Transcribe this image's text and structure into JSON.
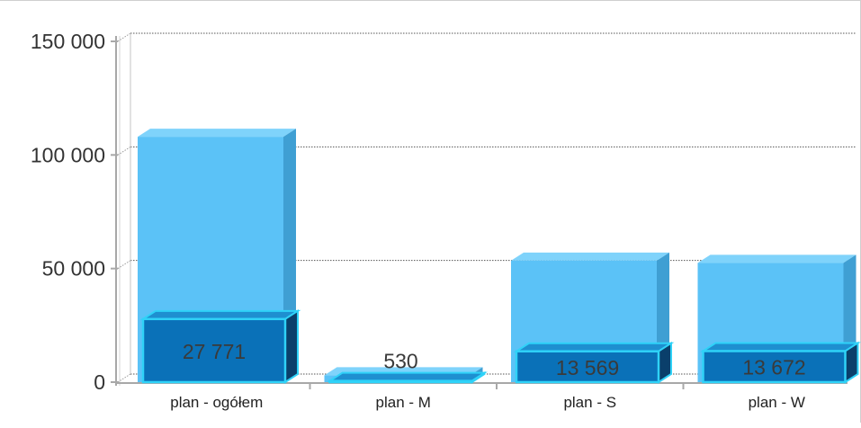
{
  "chart_data": {
    "type": "bar",
    "categories": [
      "plan - ogółem",
      "plan - M",
      "plan - S",
      "plan - W"
    ],
    "series": [
      {
        "values": [
          108000,
          3000,
          53500,
          52500
        ]
      },
      {
        "values": [
          27771,
          530,
          13569,
          13672
        ]
      }
    ],
    "data_labels": [
      "27 771",
      "530",
      "13 569",
      "13 672"
    ],
    "y_ticks": [
      0,
      50000,
      100000,
      150000
    ],
    "y_tick_labels": [
      "0",
      "50 000",
      "100 000",
      "150 000"
    ],
    "ylim": [
      0,
      150000
    ],
    "grid": true,
    "legend": "none",
    "colors": {
      "back_series": "#5bc2f7",
      "back_side": "#3f9fd3",
      "back_top": "#7fd3fb",
      "front_series": "#0a71b8",
      "front_side": "#0a3f6b",
      "front_top": "#1e8fd0",
      "front_edge": "#2fd2f8",
      "label_text": "#3a3a3a",
      "axis": "#a8a8a8",
      "grid": "#555555"
    }
  }
}
